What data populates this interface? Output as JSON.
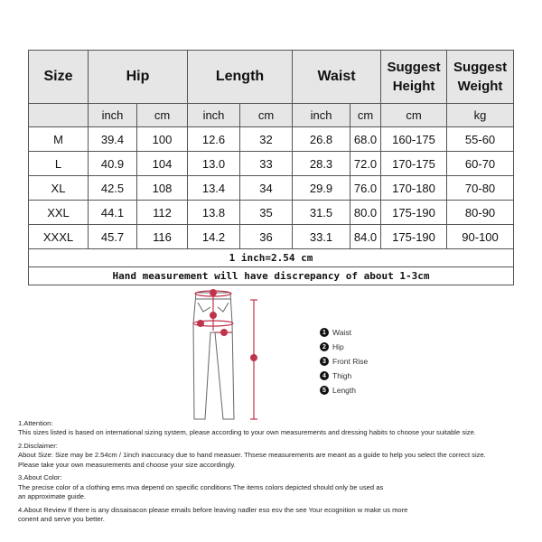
{
  "table": {
    "headers": {
      "size": "Size",
      "hip": "Hip",
      "length": "Length",
      "waist": "Waist",
      "height": "Suggest Height",
      "weight": "Suggest Weight"
    },
    "units": [
      "inch",
      "cm",
      "inch",
      "cm",
      "inch",
      "cm",
      "cm",
      "kg"
    ],
    "rows": [
      [
        "M",
        "39.4",
        "100",
        "12.6",
        "32",
        "26.8",
        "68.0",
        "160-175",
        "55-60"
      ],
      [
        "L",
        "40.9",
        "104",
        "13.0",
        "33",
        "28.3",
        "72.0",
        "170-175",
        "60-70"
      ],
      [
        "XL",
        "42.5",
        "108",
        "13.4",
        "34",
        "29.9",
        "76.0",
        "170-180",
        "70-80"
      ],
      [
        "XXL",
        "44.1",
        "112",
        "13.8",
        "35",
        "31.5",
        "80.0",
        "175-190",
        "80-90"
      ],
      [
        "XXXL",
        "45.7",
        "116",
        "14.2",
        "36",
        "33.1",
        "84.0",
        "175-190",
        "90-100"
      ]
    ],
    "conversion": "1 inch=2.54 cm",
    "discrepancy": "Hand measurement will have discrepancy of about 1-3cm"
  },
  "legend": [
    {
      "n": "1",
      "label": "Waist"
    },
    {
      "n": "2",
      "label": "Hip"
    },
    {
      "n": "3",
      "label": "Front Rise"
    },
    {
      "n": "4",
      "label": "Thigh"
    },
    {
      "n": "5",
      "label": "Length"
    }
  ],
  "accent": "#c0334d",
  "notes": [
    {
      "title": "1.Attention:",
      "lines": [
        "This sizes listed is based on international sizing system, please according to your own measurements and dressing habits to choose your suitable size."
      ]
    },
    {
      "title": "2.Disclaimer:",
      "lines": [
        "About Size: Size may be 2.54cm / 1inch inaccuracy due to hand measuer. Thsese measurements are meant as a guide to help you select the correct size.",
        "Please take your own measurements and choose your size accordingly."
      ]
    },
    {
      "title": "3.About Color:",
      "lines": [
        "The precise color of a clothing ems mva depend on specific conditions The items colors depicted should only be used as",
        "an approximate guide."
      ]
    },
    {
      "title": "4.About Review If there is any dissaisacon please emails before leaving nadler eso esv the see Your ecognition w make us more",
      "lines": [
        "conent and serve you better."
      ]
    }
  ]
}
